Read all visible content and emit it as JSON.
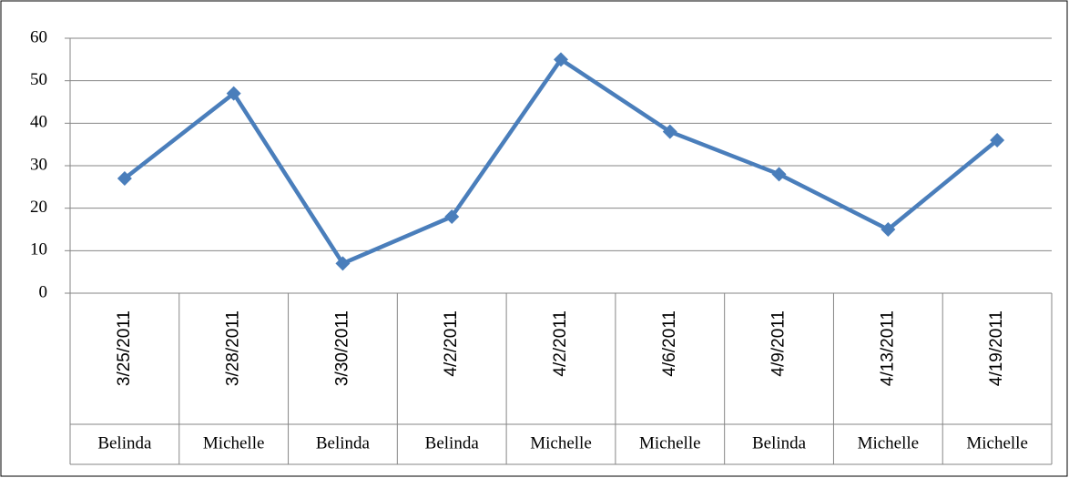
{
  "chart_data": {
    "type": "line",
    "categories": [
      "3/25/2011",
      "3/28/2011",
      "3/30/2011",
      "4/2/2011",
      "4/2/2011",
      "4/6/2011",
      "4/9/2011",
      "4/13/2011",
      "4/19/2011"
    ],
    "category_groups": [
      "Belinda",
      "Michelle",
      "Belinda",
      "Belinda",
      "Michelle",
      "Michelle",
      "Belinda",
      "Michelle",
      "Michelle"
    ],
    "values": [
      27,
      47,
      7,
      18,
      55,
      38,
      28,
      15,
      36
    ],
    "color": "#4a7ebb",
    "ylim": [
      0,
      60
    ],
    "yticks": [
      0,
      10,
      20,
      30,
      40,
      50,
      60
    ],
    "grid": true
  }
}
